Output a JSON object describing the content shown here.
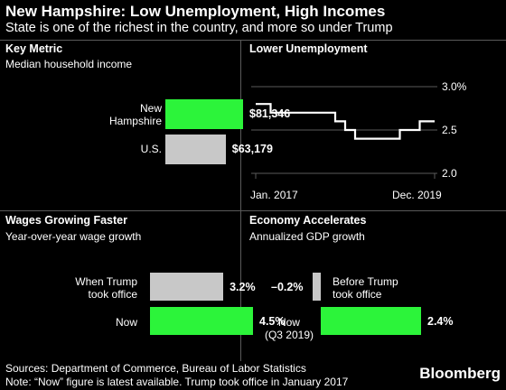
{
  "title": "New Hampshire: Low Unemployment, High Incomes",
  "subtitle": "State is one of the richest in the country, and more so under Trump",
  "colors": {
    "green": "#2cf43a",
    "gray": "#c8c8c8",
    "line": "#ffffff"
  },
  "chart_data": [
    {
      "type": "bar",
      "title": "Key Metric",
      "subtitle": "Median household income",
      "categories": [
        "New\nHampshire",
        "U.S."
      ],
      "values": [
        81346,
        63179
      ],
      "value_labels": [
        "$81,346",
        "$63,179"
      ],
      "xlim": [
        0,
        81346
      ]
    },
    {
      "type": "line",
      "title": "Lower Unemployment",
      "x_labels": [
        "Jan. 2017",
        "Dec. 2019"
      ],
      "y_ticks": [
        "3.0%",
        "2.5",
        "2.0"
      ],
      "ylim": [
        2.0,
        3.0
      ],
      "values": [
        2.8,
        2.8,
        2.8,
        2.7,
        2.7,
        2.7,
        2.7,
        2.7,
        2.7,
        2.7,
        2.7,
        2.7,
        2.7,
        2.7,
        2.7,
        2.7,
        2.6,
        2.6,
        2.5,
        2.5,
        2.4,
        2.4,
        2.4,
        2.4,
        2.4,
        2.4,
        2.4,
        2.4,
        2.4,
        2.5,
        2.5,
        2.5,
        2.5,
        2.6,
        2.6,
        2.6
      ]
    },
    {
      "type": "bar",
      "title": "Wages Growing Faster",
      "subtitle": "Year-over-year wage growth",
      "categories": [
        "When Trump\ntook office",
        "Now"
      ],
      "values": [
        3.2,
        4.5
      ],
      "value_labels": [
        "3.2%",
        "4.5%"
      ],
      "xlim": [
        0,
        4.5
      ]
    },
    {
      "type": "bar",
      "title": "Economy Accelerates",
      "subtitle": "Annualized GDP growth",
      "categories": [
        "Before Trump\ntook office",
        "Now\n(Q3 2019)"
      ],
      "values": [
        -0.2,
        2.4
      ],
      "value_labels": [
        "–0.2%",
        "2.4%"
      ],
      "xlim": [
        -0.2,
        2.4
      ]
    }
  ],
  "sources": "Sources: Department of Commerce, Bureau of Labor Statistics",
  "note": "Note: “Now” figure is latest available. Trump took office in January 2017",
  "brand": "Bloomberg"
}
